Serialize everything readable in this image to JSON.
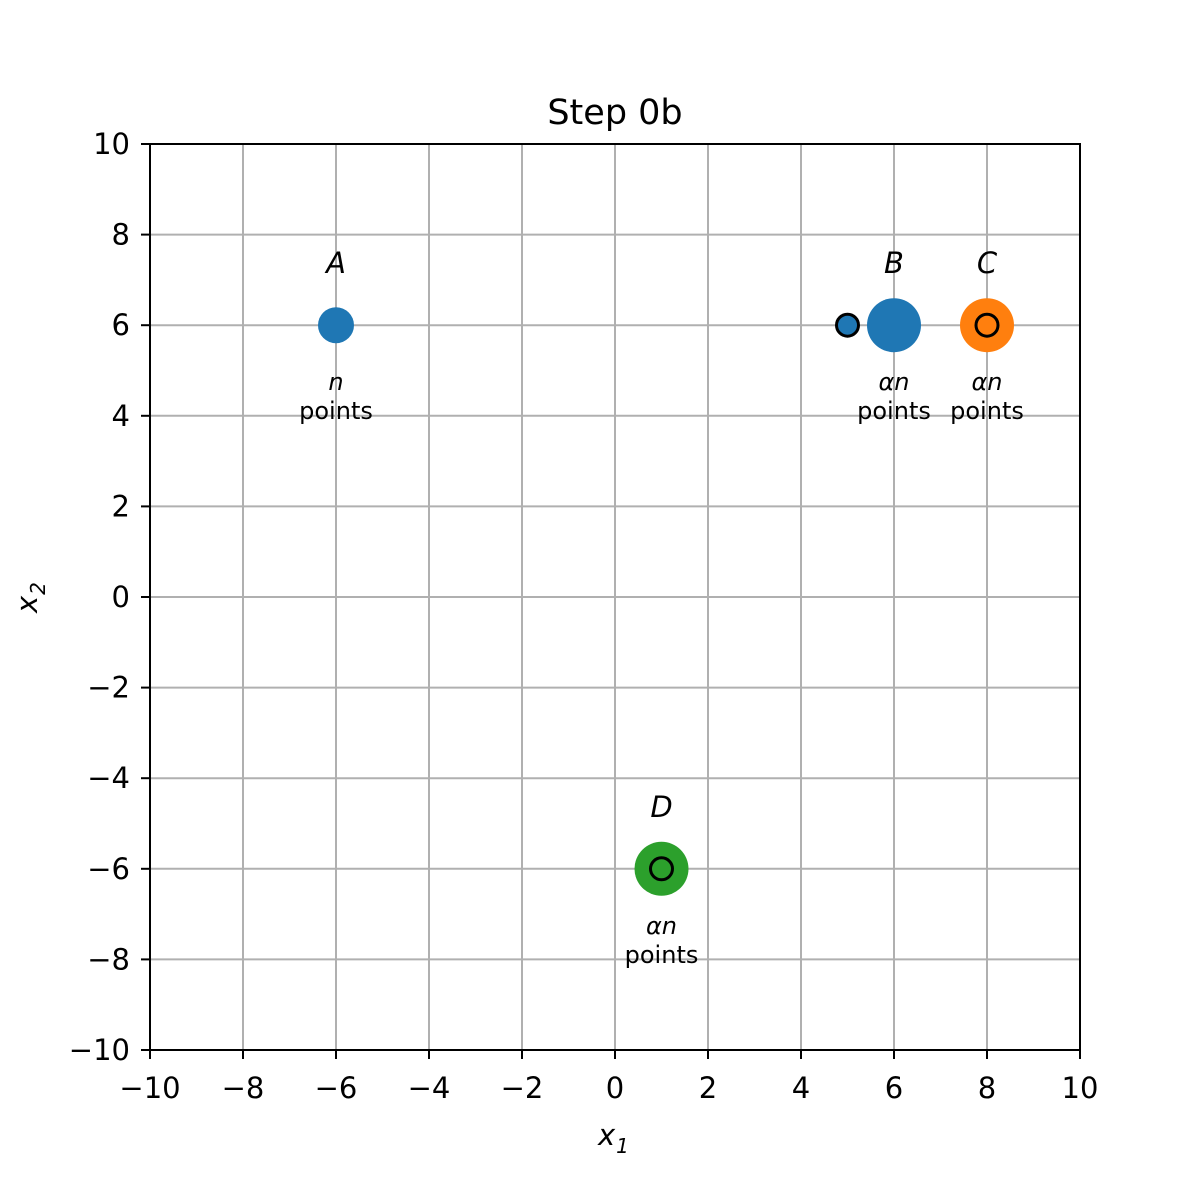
{
  "chart_data": {
    "type": "scatter",
    "title": "Step 0b",
    "xlabel": {
      "main": "x",
      "sub": "1"
    },
    "ylabel": {
      "main": "x",
      "sub": "2"
    },
    "xlim": [
      -10,
      10
    ],
    "ylim": [
      -10,
      10
    ],
    "xticks": [
      -10,
      -8,
      -6,
      -4,
      -2,
      0,
      2,
      4,
      6,
      8,
      10
    ],
    "yticks": [
      -10,
      -8,
      -6,
      -4,
      -2,
      0,
      2,
      4,
      6,
      8,
      10
    ],
    "xtick_labels": [
      "−10",
      "−8",
      "−6",
      "−4",
      "−2",
      "0",
      "2",
      "4",
      "6",
      "8",
      "10"
    ],
    "ytick_labels": [
      "−10",
      "−8",
      "−6",
      "−4",
      "−2",
      "0",
      "2",
      "4",
      "6",
      "8",
      "10"
    ],
    "grid": true,
    "clusters": [
      {
        "name": "A",
        "x": -6,
        "y": 6,
        "color": "#1f77b4",
        "size": "small",
        "count_symbol": "n",
        "count_word": "points"
      },
      {
        "name": "B",
        "x": 6,
        "y": 6,
        "color": "#1f77b4",
        "size": "large",
        "count_symbol": "αn",
        "count_word": "points"
      },
      {
        "name": "C",
        "x": 8,
        "y": 6,
        "color": "#ff7f0e",
        "size": "large",
        "count_symbol": "αn",
        "count_word": "points"
      },
      {
        "name": "D",
        "x": 1,
        "y": -6,
        "color": "#2ca02c",
        "size": "large",
        "count_symbol": "αn",
        "count_word": "points"
      }
    ],
    "centers": [
      {
        "x": 5,
        "y": 6,
        "fill": "#1f77b4"
      },
      {
        "x": 8,
        "y": 6,
        "fill": "#ff7f0e"
      },
      {
        "x": 1,
        "y": -6,
        "fill": "#2ca02c"
      }
    ]
  }
}
